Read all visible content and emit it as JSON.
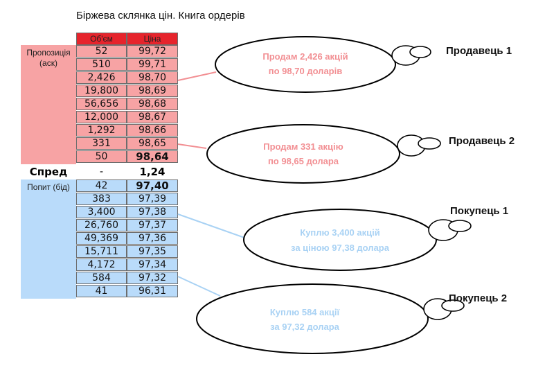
{
  "title": "Біржева склянка цін. Книга ордерів",
  "headers": {
    "volume": "Об'єм",
    "price": "Ціна"
  },
  "ask_label": "Пропозиція (аск)",
  "bid_label": "Попит (бід)",
  "asks": [
    {
      "volume": "52",
      "price": "99,72"
    },
    {
      "volume": "510",
      "price": "99,71"
    },
    {
      "volume": "2,426",
      "price": "98,70"
    },
    {
      "volume": "19,800",
      "price": "98,69"
    },
    {
      "volume": "56,656",
      "price": "98,68"
    },
    {
      "volume": "12,000",
      "price": "98,67"
    },
    {
      "volume": "1,292",
      "price": "98,66"
    },
    {
      "volume": "331",
      "price": "98,65"
    },
    {
      "volume": "50",
      "price": "98,64"
    }
  ],
  "spread": {
    "label": "Спред",
    "volume": "-",
    "value": "1,24"
  },
  "bids": [
    {
      "volume": "42",
      "price": "97,40"
    },
    {
      "volume": "383",
      "price": "97,39"
    },
    {
      "volume": "3,400",
      "price": "97,38"
    },
    {
      "volume": "26,760",
      "price": "97,37"
    },
    {
      "volume": "49,369",
      "price": "97,36"
    },
    {
      "volume": "15,711",
      "price": "97,35"
    },
    {
      "volume": "4,172",
      "price": "97,34"
    },
    {
      "volume": "584",
      "price": "97,32"
    },
    {
      "volume": "41",
      "price": "96,31"
    }
  ],
  "traders": {
    "seller1": {
      "name": "Продавець 1",
      "line1": "Продам 2,426 акцій",
      "line2": "по 98,70 доларів"
    },
    "seller2": {
      "name": "Продавець 2",
      "line1": "Продам 331 акцію",
      "line2": "по 98,65 долара"
    },
    "buyer1": {
      "name": "Покупець 1",
      "line1": "Куплю 3,400 акцій",
      "line2": "за ціною 97,38 долара"
    },
    "buyer2": {
      "name": "Покупець 2",
      "line1": "Куплю 584 акції",
      "line2": "за 97,32 долара"
    }
  },
  "colors": {
    "ask_text": "#f28f93",
    "bid_text": "#a9d2f4",
    "ask_line": "#f28f93",
    "bid_line": "#a9d2f4"
  }
}
